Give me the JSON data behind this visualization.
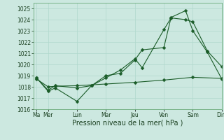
{
  "title": "",
  "xlabel": "Pression niveau de la mer( hPa )",
  "background_color": "#cce8e0",
  "plot_bg_color": "#cce8e0",
  "grid_color": "#b0d8cc",
  "line_color": "#1a5c28",
  "ylim": [
    1016,
    1025.5
  ],
  "yticks": [
    1016,
    1017,
    1018,
    1019,
    1020,
    1021,
    1022,
    1023,
    1024,
    1025
  ],
  "xlim": [
    0,
    13
  ],
  "day_labels": [
    "Ma",
    "Mer",
    "Lun",
    "Mar",
    "Jeu",
    "Ven",
    "Sam",
    "Dim"
  ],
  "day_positions": [
    0.2,
    1.0,
    3.0,
    5.0,
    7.0,
    9.0,
    11.0,
    13.0
  ],
  "series": [
    {
      "x": [
        0.2,
        1.0,
        1.5,
        3.0,
        4.0,
        5.0,
        6.0,
        7.0,
        7.5,
        9.0,
        9.5,
        10.5,
        11.0,
        12.0,
        13.0
      ],
      "y": [
        1018.8,
        1017.6,
        1017.9,
        1016.7,
        1018.1,
        1018.8,
        1019.5,
        1020.5,
        1019.7,
        1023.1,
        1024.15,
        1024.0,
        1023.8,
        1021.2,
        1019.8
      ]
    },
    {
      "x": [
        0.2,
        1.0,
        1.5,
        3.0,
        4.0,
        5.0,
        6.0,
        7.0,
        7.5,
        9.0,
        9.5,
        10.5,
        11.0,
        12.0,
        13.0
      ],
      "y": [
        1018.8,
        1017.7,
        1018.1,
        1017.9,
        1018.1,
        1019.0,
        1019.2,
        1020.4,
        1021.3,
        1021.5,
        1024.2,
        1024.8,
        1023.0,
        1021.1,
        1018.7
      ]
    },
    {
      "x": [
        0.2,
        1.0,
        1.5,
        3.0,
        5.0,
        7.0,
        9.0,
        11.0,
        13.0
      ],
      "y": [
        1018.7,
        1018.0,
        1018.05,
        1018.1,
        1018.25,
        1018.4,
        1018.6,
        1018.85,
        1018.75
      ]
    }
  ],
  "font_size_ticks": 5.5,
  "font_size_xlabel": 7.0,
  "marker_size": 2.5,
  "line_width": 0.8
}
